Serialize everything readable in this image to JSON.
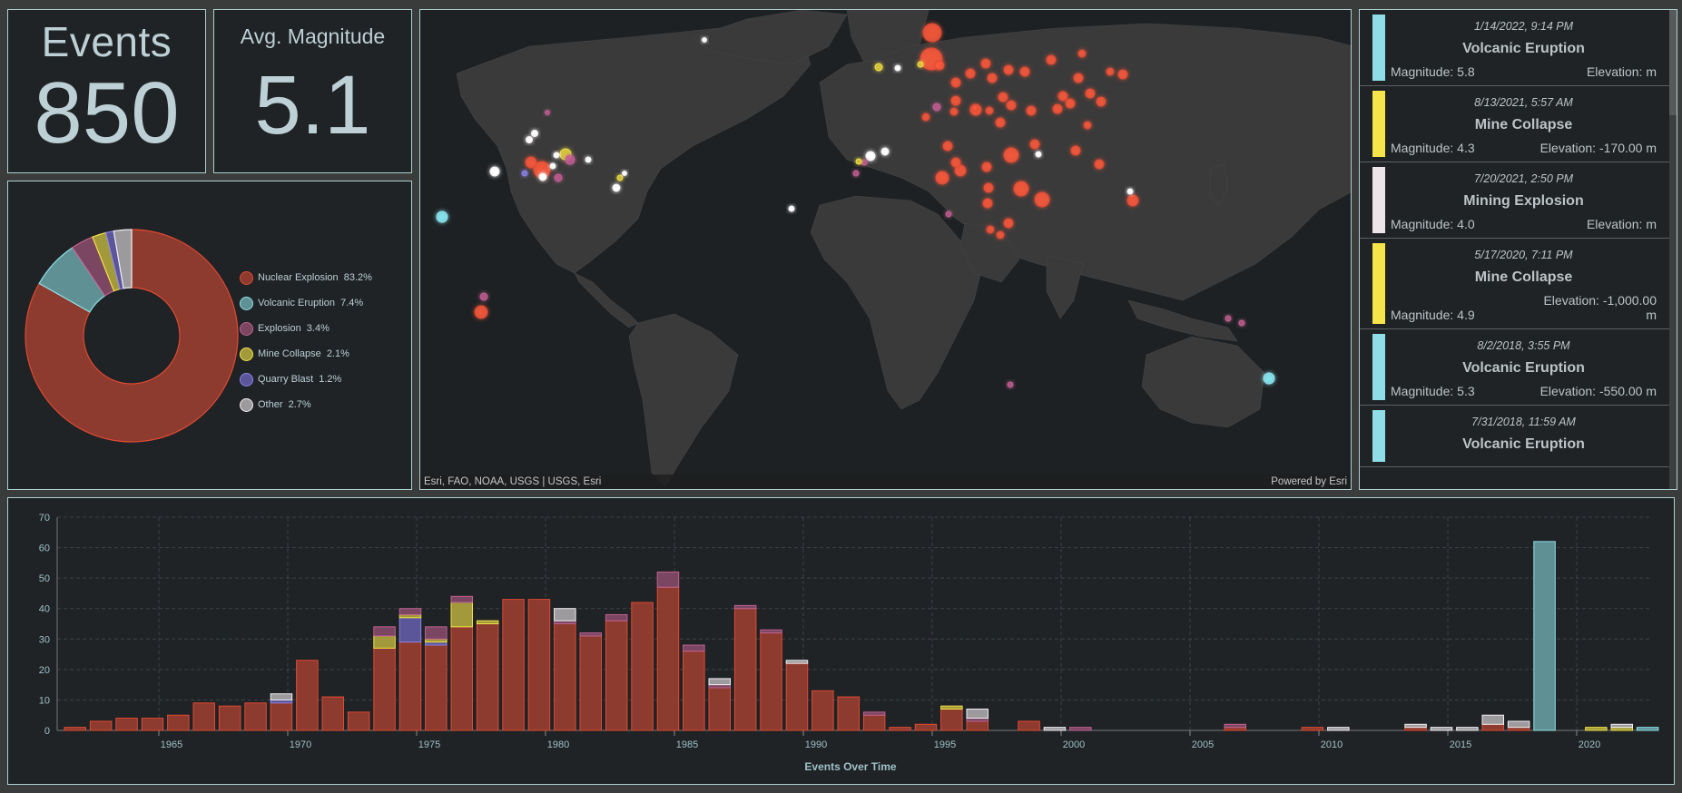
{
  "kpis": {
    "events": {
      "title": "Events",
      "value": "850"
    },
    "avg_magnitude": {
      "title": "Avg. Magnitude",
      "value": "5.1"
    }
  },
  "colors": {
    "nuclear": "#8d3a2f",
    "nuclear_stroke": "#e04a32",
    "volcanic": "#5f9194",
    "volcanic_stroke": "#8de0e8",
    "explosion": "#7a4662",
    "explosion_stroke": "#c0628f",
    "mine": "#a29a3a",
    "mine_stroke": "#f2e048",
    "quarry": "#5b559a",
    "quarry_stroke": "#8a82e6",
    "other": "#9d9a9e",
    "other_stroke": "#f2eef0",
    "panel_bg": "#1f2326",
    "panel_border": "#aecfcf"
  },
  "donut": {
    "legend": [
      {
        "key": "nuclear",
        "label": "Nuclear Explosion",
        "pct": "83.2%",
        "value": 83.2
      },
      {
        "key": "volcanic",
        "label": "Volcanic Eruption",
        "pct": "7.4%",
        "value": 7.4
      },
      {
        "key": "explosion",
        "label": "Explosion",
        "pct": "3.4%",
        "value": 3.4
      },
      {
        "key": "mine",
        "label": "Mine Collapse",
        "pct": "2.1%",
        "value": 2.1
      },
      {
        "key": "quarry",
        "label": "Quarry Blast",
        "pct": "1.2%",
        "value": 1.2
      },
      {
        "key": "other",
        "label": "Other",
        "pct": "2.7%",
        "value": 2.7
      }
    ]
  },
  "map": {
    "attribution_left": "Esri, FAO, NOAA, USGS | USGS, Esri",
    "attribution_right": "Powered by Esri"
  },
  "feed": {
    "items": [
      {
        "date": "1/14/2022, 9:14 PM",
        "type": "Volcanic Eruption",
        "magnitude": "Magnitude: 5.8",
        "elevation": "Elevation: m",
        "color": "#8fdde6"
      },
      {
        "date": "8/13/2021, 5:57 AM",
        "type": "Mine Collapse",
        "magnitude": "Magnitude: 4.3",
        "elevation": "Elevation: -170.00 m",
        "color": "#f7e34a"
      },
      {
        "date": "7/20/2021, 2:50 PM",
        "type": "Mining Explosion",
        "magnitude": "Magnitude: 4.0",
        "elevation": "Elevation: m",
        "color": "#ede4e8"
      },
      {
        "date": "5/17/2020, 7:11 PM",
        "type": "Mine Collapse",
        "magnitude": "Magnitude: 4.9",
        "elevation": "Elevation: -1,000.00 m",
        "color": "#f7e34a"
      },
      {
        "date": "8/2/2018, 3:55 PM",
        "type": "Volcanic Eruption",
        "magnitude": "Magnitude: 5.3",
        "elevation": "Elevation: -550.00 m",
        "color": "#8fdde6"
      },
      {
        "date": "7/31/2018, 11:59 AM",
        "type": "Volcanic Eruption",
        "magnitude": "",
        "elevation": "",
        "color": "#8fdde6"
      }
    ]
  },
  "chart_data": {
    "type": "bar",
    "stacked": true,
    "title": "",
    "xlabel": "Events Over Time",
    "ylabel": "",
    "ylim": [
      0,
      70
    ],
    "yticks": [
      0,
      10,
      20,
      30,
      40,
      50,
      60,
      70
    ],
    "xticks": [
      1965,
      1970,
      1975,
      1980,
      1985,
      1990,
      1995,
      2000,
      2005,
      2010,
      2015,
      2020
    ],
    "grid": true,
    "categories": [
      1961,
      1962,
      1963,
      1964,
      1965,
      1966,
      1967,
      1968,
      1969,
      1970,
      1971,
      1972,
      1973,
      1974,
      1975,
      1976,
      1977,
      1978,
      1979,
      1980,
      1981,
      1982,
      1983,
      1984,
      1985,
      1986,
      1987,
      1988,
      1989,
      1990,
      1991,
      1992,
      1993,
      1994,
      1995,
      1996,
      1997,
      1998,
      1999,
      2000,
      2001,
      2002,
      2003,
      2004,
      2005,
      2006,
      2007,
      2008,
      2009,
      2010,
      2011,
      2012,
      2013,
      2014,
      2015,
      2016,
      2017,
      2018,
      2019,
      2020,
      2021,
      2022
    ],
    "series": [
      {
        "name": "Nuclear Explosion",
        "key": "nuclear",
        "values": [
          1,
          3,
          4,
          4,
          5,
          9,
          8,
          9,
          9,
          23,
          11,
          6,
          27,
          29,
          28,
          34,
          35,
          43,
          43,
          35,
          31,
          36,
          42,
          47,
          26,
          14,
          40,
          32,
          22,
          13,
          11,
          5,
          1,
          2,
          7,
          3,
          0,
          3,
          0,
          0,
          0,
          0,
          0,
          0,
          0,
          1,
          0,
          0,
          1,
          0,
          0,
          0,
          1,
          0,
          0,
          2,
          1,
          0,
          0,
          0,
          0,
          0
        ]
      },
      {
        "name": "Quarry Blast",
        "key": "quarry",
        "values": [
          0,
          0,
          0,
          0,
          0,
          0,
          0,
          0,
          1,
          0,
          0,
          0,
          0,
          8,
          1,
          0,
          0,
          0,
          0,
          0,
          0,
          0,
          0,
          0,
          0,
          0,
          0,
          0,
          0,
          0,
          0,
          0,
          0,
          0,
          0,
          0,
          0,
          0,
          0,
          0,
          0,
          0,
          0,
          0,
          0,
          0,
          0,
          0,
          0,
          0,
          0,
          0,
          0,
          0,
          0,
          0,
          0,
          0,
          0,
          0,
          0,
          0
        ]
      },
      {
        "name": "Mine Collapse",
        "key": "mine",
        "values": [
          0,
          0,
          0,
          0,
          0,
          0,
          0,
          0,
          0,
          0,
          0,
          0,
          4,
          1,
          1,
          8,
          1,
          0,
          0,
          0,
          0,
          0,
          0,
          0,
          0,
          0,
          0,
          0,
          0,
          0,
          0,
          0,
          0,
          0,
          1,
          0,
          0,
          0,
          0,
          0,
          0,
          0,
          0,
          0,
          0,
          0,
          0,
          0,
          0,
          0,
          0,
          0,
          0,
          0,
          0,
          0,
          0,
          0,
          0,
          1,
          1,
          0
        ]
      },
      {
        "name": "Explosion",
        "key": "explosion",
        "values": [
          0,
          0,
          0,
          0,
          0,
          0,
          0,
          0,
          0,
          0,
          0,
          0,
          3,
          2,
          4,
          2,
          0,
          0,
          0,
          1,
          1,
          2,
          0,
          5,
          2,
          1,
          1,
          1,
          0,
          0,
          0,
          1,
          0,
          0,
          0,
          1,
          0,
          0,
          0,
          1,
          0,
          0,
          0,
          0,
          0,
          1,
          0,
          0,
          0,
          0,
          0,
          0,
          0,
          0,
          0,
          0,
          0,
          0,
          0,
          0,
          0,
          0
        ]
      },
      {
        "name": "Other",
        "key": "other",
        "values": [
          0,
          0,
          0,
          0,
          0,
          0,
          0,
          0,
          2,
          0,
          0,
          0,
          0,
          0,
          0,
          0,
          0,
          0,
          0,
          4,
          0,
          0,
          0,
          0,
          0,
          2,
          0,
          0,
          1,
          0,
          0,
          0,
          0,
          0,
          0,
          3,
          0,
          0,
          1,
          0,
          0,
          0,
          0,
          0,
          0,
          0,
          0,
          0,
          0,
          1,
          0,
          0,
          1,
          1,
          1,
          3,
          2,
          0,
          0,
          0,
          1,
          0
        ]
      },
      {
        "name": "Volcanic Eruption",
        "key": "volcanic",
        "values": [
          0,
          0,
          0,
          0,
          0,
          0,
          0,
          0,
          0,
          0,
          0,
          0,
          0,
          0,
          0,
          0,
          0,
          0,
          0,
          0,
          0,
          0,
          0,
          0,
          0,
          0,
          0,
          0,
          0,
          0,
          0,
          0,
          0,
          0,
          0,
          0,
          0,
          0,
          0,
          0,
          0,
          0,
          0,
          0,
          0,
          0,
          0,
          0,
          0,
          0,
          0,
          0,
          0,
          0,
          0,
          0,
          0,
          62,
          0,
          0,
          0,
          1
        ]
      }
    ],
    "legend_position": "none"
  }
}
